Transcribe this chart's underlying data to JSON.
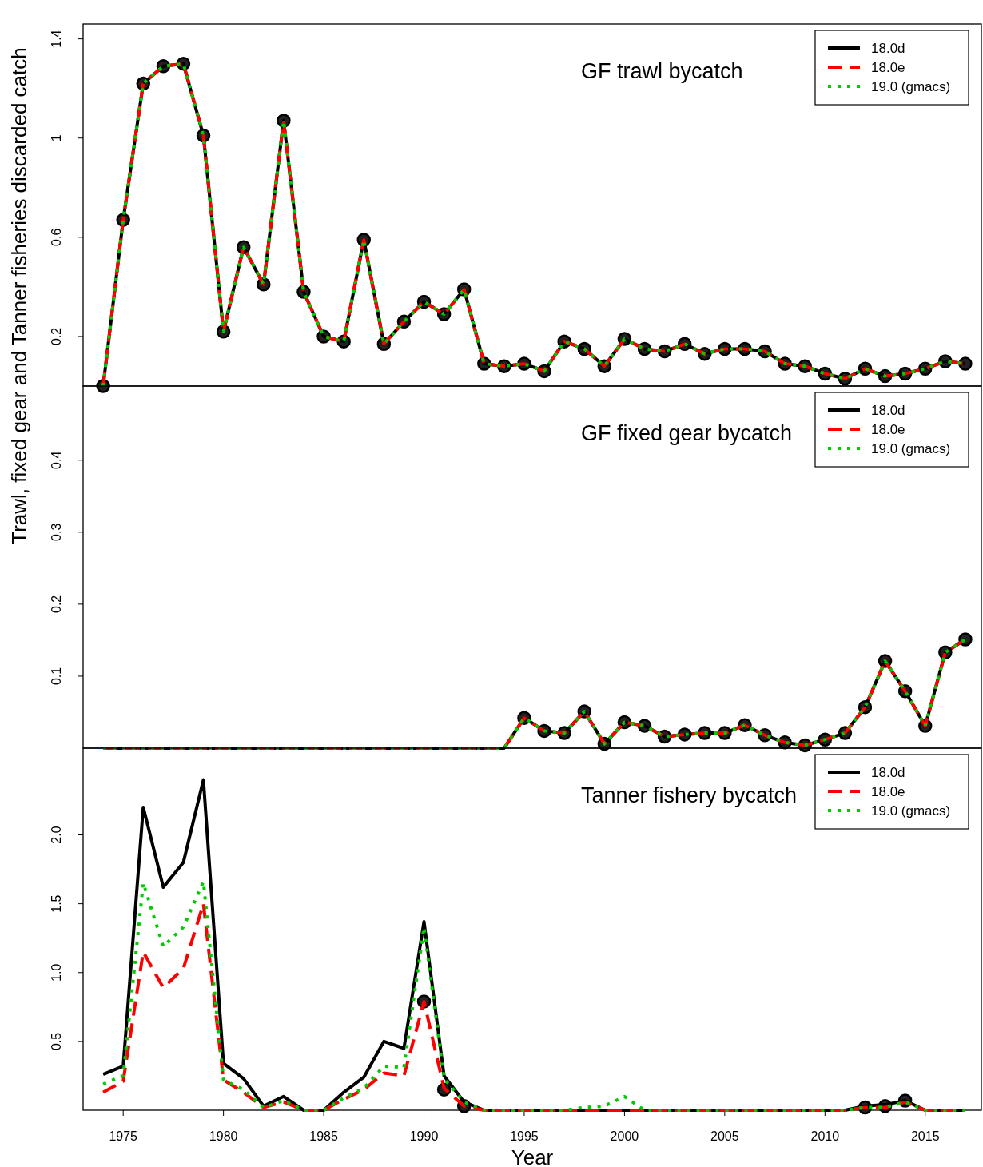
{
  "chart_data": [
    {
      "type": "line",
      "title": "GF trawl bycatch",
      "x": [
        1974,
        1975,
        1976,
        1977,
        1978,
        1979,
        1980,
        1981,
        1982,
        1983,
        1984,
        1985,
        1986,
        1987,
        1988,
        1989,
        1990,
        1991,
        1992,
        1993,
        1994,
        1995,
        1996,
        1997,
        1998,
        1999,
        2000,
        2001,
        2002,
        2003,
        2004,
        2005,
        2006,
        2007,
        2008,
        2009,
        2010,
        2011,
        2012,
        2013,
        2014,
        2015,
        2016,
        2017
      ],
      "xlim": [
        1973,
        2017.8
      ],
      "xticks": [
        1975,
        1980,
        1985,
        1990,
        1995,
        2000,
        2005,
        2010,
        2015
      ],
      "ylim": [
        0,
        1.46
      ],
      "yticks": [
        0.2,
        0.6,
        1,
        1.4
      ],
      "tick_labels": "y",
      "legend": "top right",
      "series": [
        {
          "name": "18.0d",
          "color": "#000000",
          "line_style": "solid",
          "marker": "none",
          "values": [
            0,
            0.67,
            1.22,
            1.29,
            1.3,
            1.01,
            0.22,
            0.56,
            0.41,
            1.07,
            0.38,
            0.2,
            0.18,
            0.59,
            0.17,
            0.26,
            0.34,
            0.29,
            0.39,
            0.09,
            0.08,
            0.09,
            0.06,
            0.18,
            0.15,
            0.08,
            0.19,
            0.15,
            0.14,
            0.17,
            0.13,
            0.15,
            0.15,
            0.14,
            0.09,
            0.08,
            0.05,
            0.03,
            0.07,
            0.04,
            0.05,
            0.07,
            0.1,
            0.09
          ]
        },
        {
          "name": "18.0e",
          "color": "#ff0000",
          "line_style": "dashed",
          "marker": "none",
          "values": [
            0,
            0.67,
            1.22,
            1.29,
            1.3,
            1.01,
            0.22,
            0.56,
            0.41,
            1.07,
            0.38,
            0.2,
            0.18,
            0.59,
            0.17,
            0.26,
            0.34,
            0.29,
            0.39,
            0.09,
            0.08,
            0.09,
            0.06,
            0.18,
            0.15,
            0.08,
            0.19,
            0.15,
            0.14,
            0.17,
            0.13,
            0.15,
            0.15,
            0.14,
            0.09,
            0.08,
            0.05,
            0.03,
            0.07,
            0.04,
            0.05,
            0.07,
            0.1,
            0.09
          ]
        },
        {
          "name": "19.0 (gmacs)",
          "color": "#00cc00",
          "line_style": "dotted",
          "marker": "none",
          "values": [
            0,
            0.67,
            1.22,
            1.29,
            1.3,
            1.01,
            0.22,
            0.56,
            0.41,
            1.07,
            0.38,
            0.2,
            0.18,
            0.59,
            0.17,
            0.26,
            0.34,
            0.29,
            0.39,
            0.09,
            0.08,
            0.09,
            0.06,
            0.18,
            0.15,
            0.08,
            0.19,
            0.15,
            0.14,
            0.17,
            0.13,
            0.15,
            0.15,
            0.14,
            0.09,
            0.08,
            0.05,
            0.03,
            0.07,
            0.04,
            0.05,
            0.07,
            0.1,
            0.09
          ]
        },
        {
          "type": "scatter",
          "color": "#000000",
          "marker": "circle",
          "values": [
            0,
            0.67,
            1.22,
            1.29,
            1.3,
            1.01,
            0.22,
            0.56,
            0.41,
            1.07,
            0.38,
            0.2,
            0.18,
            0.59,
            0.17,
            0.26,
            0.34,
            0.29,
            0.39,
            0.09,
            0.08,
            0.09,
            0.06,
            0.18,
            0.15,
            0.08,
            0.19,
            0.15,
            0.14,
            0.17,
            0.13,
            0.15,
            0.15,
            0.14,
            0.09,
            0.08,
            0.05,
            0.03,
            0.07,
            0.04,
            0.05,
            0.07,
            0.1,
            0.09
          ]
        }
      ]
    },
    {
      "type": "line",
      "title": "GF fixed gear bycatch",
      "ylabel": "Trawl, fixed gear and Tanner fisheries discarded catch",
      "x": [
        1974,
        1975,
        1976,
        1977,
        1978,
        1979,
        1980,
        1981,
        1982,
        1983,
        1984,
        1985,
        1986,
        1987,
        1988,
        1989,
        1990,
        1991,
        1992,
        1993,
        1994,
        1995,
        1996,
        1997,
        1998,
        1999,
        2000,
        2001,
        2002,
        2003,
        2004,
        2005,
        2006,
        2007,
        2008,
        2009,
        2010,
        2011,
        2012,
        2013,
        2014,
        2015,
        2016,
        2017
      ],
      "xlim": [
        1973,
        2017.8
      ],
      "xticks": [
        1975,
        1980,
        1985,
        1990,
        1995,
        2000,
        2005,
        2010,
        2015
      ],
      "ylim": [
        0,
        0.503
      ],
      "yticks": [
        0.1,
        0.2,
        0.3,
        0.4
      ],
      "tick_labels": "y",
      "legend": "top right",
      "series": [
        {
          "name": "18.0d",
          "color": "#000000",
          "line_style": "solid",
          "marker": "none",
          "values": [
            0,
            0,
            0,
            0,
            0,
            0,
            0,
            0,
            0,
            0,
            0,
            0,
            0,
            0,
            0,
            0,
            0,
            0,
            0,
            0,
            0,
            0.042,
            0.024,
            0.021,
            0.051,
            0.006,
            0.036,
            0.031,
            0.016,
            0.019,
            0.021,
            0.021,
            0.032,
            0.018,
            0.008,
            0.004,
            0.012,
            0.021,
            0.057,
            0.121,
            0.079,
            0.031,
            0.133,
            0.151
          ]
        },
        {
          "name": "18.0e",
          "color": "#ff0000",
          "line_style": "dashed",
          "marker": "none",
          "values": [
            0,
            0,
            0,
            0,
            0,
            0,
            0,
            0,
            0,
            0,
            0,
            0,
            0,
            0,
            0,
            0,
            0,
            0,
            0,
            0,
            0,
            0.042,
            0.024,
            0.021,
            0.051,
            0.006,
            0.036,
            0.031,
            0.016,
            0.019,
            0.021,
            0.021,
            0.032,
            0.018,
            0.008,
            0.004,
            0.012,
            0.021,
            0.057,
            0.121,
            0.079,
            0.031,
            0.133,
            0.151
          ]
        },
        {
          "name": "19.0 (gmacs)",
          "color": "#00cc00",
          "line_style": "dotted",
          "marker": "none",
          "values": [
            0,
            0,
            0,
            0,
            0,
            0,
            0,
            0,
            0,
            0,
            0,
            0,
            0,
            0,
            0,
            0,
            0,
            0,
            0,
            0,
            0,
            0.042,
            0.024,
            0.021,
            0.051,
            0.006,
            0.036,
            0.031,
            0.016,
            0.019,
            0.021,
            0.021,
            0.032,
            0.018,
            0.008,
            0.004,
            0.012,
            0.021,
            0.057,
            0.121,
            0.079,
            0.031,
            0.133,
            0.151
          ]
        },
        {
          "type": "scatter",
          "color": "#000000",
          "marker": "circle",
          "values": [
            null,
            null,
            null,
            null,
            null,
            null,
            null,
            null,
            null,
            null,
            null,
            null,
            null,
            null,
            null,
            null,
            null,
            null,
            null,
            null,
            null,
            0.042,
            0.024,
            0.021,
            0.051,
            0.006,
            0.036,
            0.031,
            0.016,
            0.019,
            0.021,
            0.021,
            0.032,
            0.018,
            0.008,
            0.004,
            0.012,
            0.021,
            0.057,
            0.121,
            0.079,
            0.031,
            0.133,
            0.151
          ]
        }
      ]
    },
    {
      "type": "line",
      "title": "Tanner fishery bycatch",
      "xlabel": "Year",
      "x": [
        1974,
        1975,
        1976,
        1977,
        1978,
        1979,
        1980,
        1981,
        1982,
        1983,
        1984,
        1985,
        1986,
        1987,
        1988,
        1989,
        1990,
        1991,
        1992,
        1993,
        1994,
        1995,
        1996,
        1997,
        1998,
        1999,
        2000,
        2001,
        2002,
        2003,
        2004,
        2005,
        2006,
        2007,
        2008,
        2009,
        2010,
        2011,
        2012,
        2013,
        2014,
        2015,
        2016,
        2017
      ],
      "xlim": [
        1973,
        2017.8
      ],
      "xticks": [
        1975,
        1980,
        1985,
        1990,
        1995,
        2000,
        2005,
        2010,
        2015
      ],
      "ylim": [
        0,
        2.63
      ],
      "yticks": [
        0.5,
        {
          "value": 1,
          "label": "1.0"
        },
        1.5,
        {
          "value": 2,
          "label": "2.0"
        }
      ],
      "legend": "top right",
      "series": [
        {
          "name": "18.0d",
          "color": "#000000",
          "line_style": "solid",
          "marker": "none",
          "values": [
            0.26,
            0.32,
            2.2,
            1.62,
            1.8,
            2.4,
            0.34,
            0.23,
            0.03,
            0.1,
            0,
            0,
            0.13,
            0.24,
            0.5,
            0.45,
            1.37,
            0.25,
            0.06,
            0,
            0,
            0,
            0,
            0,
            0,
            0,
            0,
            0,
            0,
            0,
            0,
            0,
            0,
            0,
            0,
            0,
            0,
            0,
            0.03,
            0.04,
            0.07,
            0,
            0,
            0
          ]
        },
        {
          "name": "18.0e",
          "color": "#ff0000",
          "line_style": "dashed",
          "marker": "none",
          "values": [
            0.13,
            0.21,
            1.15,
            0.89,
            1.03,
            1.5,
            0.22,
            0.13,
            0.02,
            0.06,
            0,
            0,
            0.08,
            0.15,
            0.27,
            0.25,
            0.79,
            0.16,
            0.03,
            0,
            0,
            0,
            0,
            0,
            0,
            0,
            0,
            0,
            0,
            0,
            0,
            0,
            0,
            0,
            0,
            0,
            0,
            0,
            0.02,
            0.02,
            0.06,
            0,
            0,
            0
          ]
        },
        {
          "name": "19.0 (gmacs)",
          "color": "#00cc00",
          "line_style": "dotted",
          "marker": "none",
          "values": [
            0.19,
            0.25,
            1.65,
            1.19,
            1.33,
            1.66,
            0.22,
            0.15,
            0.02,
            0.07,
            0,
            0,
            0.09,
            0.16,
            0.32,
            0.31,
            1.33,
            0.23,
            0.06,
            0,
            0,
            0,
            0,
            0,
            0.02,
            0.03,
            0.1,
            0,
            0,
            0,
            0,
            0,
            0,
            0,
            0,
            0,
            0,
            0,
            0.02,
            0.02,
            0.06,
            0,
            0,
            0
          ]
        },
        {
          "type": "scatter",
          "color": "#000000",
          "marker": "circle",
          "values": [
            null,
            null,
            null,
            null,
            null,
            null,
            null,
            null,
            null,
            null,
            null,
            null,
            null,
            null,
            null,
            null,
            0.79,
            0.15,
            0.03,
            null,
            null,
            null,
            null,
            null,
            null,
            null,
            null,
            null,
            null,
            null,
            null,
            null,
            null,
            null,
            null,
            null,
            null,
            null,
            0.02,
            0.03,
            0.07,
            null,
            null,
            null
          ]
        }
      ]
    }
  ]
}
